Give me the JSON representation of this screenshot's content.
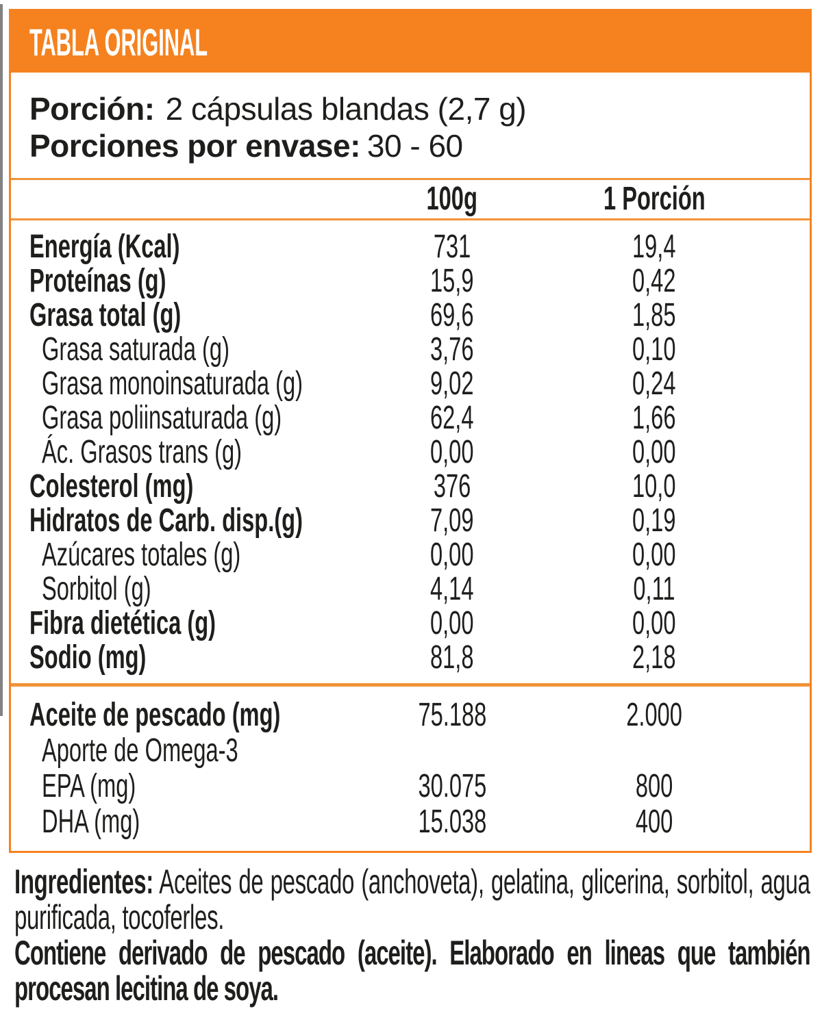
{
  "colors": {
    "accent_orange": "#F5821F",
    "rule_orange": "#F19338",
    "text_black": "#1E1E1C",
    "title_text_white": "#FFFFFF"
  },
  "header": {
    "title": "TABLA ORIGINAL"
  },
  "serving_info": {
    "portion_label": "Porción:",
    "portion_value": "2 cápsulas blandas (2,7 g)",
    "per_container_label": "Porciones por envase:",
    "per_container_value": "30 - 60"
  },
  "columns": {
    "per_100g": "100g",
    "per_portion": "1 Porción"
  },
  "nutrients": [
    {
      "label": "Energía (Kcal)",
      "per_100g": "731",
      "per_portion": "19,4",
      "bold": true,
      "indent": false
    },
    {
      "label": "Proteínas (g)",
      "per_100g": "15,9",
      "per_portion": "0,42",
      "bold": true,
      "indent": false
    },
    {
      "label": "Grasa total (g)",
      "per_100g": "69,6",
      "per_portion": "1,85",
      "bold": true,
      "indent": false
    },
    {
      "label": "Grasa saturada (g)",
      "per_100g": "3,76",
      "per_portion": "0,10",
      "bold": false,
      "indent": true
    },
    {
      "label": "Grasa monoinsaturada (g)",
      "per_100g": "9,02",
      "per_portion": "0,24",
      "bold": false,
      "indent": true
    },
    {
      "label": "Grasa poliinsaturada (g)",
      "per_100g": "62,4",
      "per_portion": "1,66",
      "bold": false,
      "indent": true
    },
    {
      "label": "Ác. Grasos trans (g)",
      "per_100g": "0,00",
      "per_portion": "0,00",
      "bold": false,
      "indent": true
    },
    {
      "label": "Colesterol (mg)",
      "per_100g": "376",
      "per_portion": "10,0",
      "bold": true,
      "indent": false
    },
    {
      "label": "Hidratos de Carb. disp.(g)",
      "per_100g": "7,09",
      "per_portion": "0,19",
      "bold": true,
      "indent": false
    },
    {
      "label": "Azúcares totales (g)",
      "per_100g": "0,00",
      "per_portion": "0,00",
      "bold": false,
      "indent": true
    },
    {
      "label": "Sorbitol (g)",
      "per_100g": "4,14",
      "per_portion": "0,11",
      "bold": false,
      "indent": true
    },
    {
      "label": "Fibra dietética (g)",
      "per_100g": "0,00",
      "per_portion": "0,00",
      "bold": true,
      "indent": false
    },
    {
      "label": "Sodio (mg)",
      "per_100g": "81,8",
      "per_portion": "2,18",
      "bold": true,
      "indent": false
    }
  ],
  "omega_section": [
    {
      "label": "Aceite de pescado (mg)",
      "per_100g": "75.188",
      "per_portion": "2.000",
      "bold": true,
      "indent": false
    },
    {
      "label": "Aporte de Omega-3",
      "per_100g": "",
      "per_portion": "",
      "bold": false,
      "indent": true
    },
    {
      "label": "EPA (mg)",
      "per_100g": "30.075",
      "per_portion": "800",
      "bold": false,
      "indent": true
    },
    {
      "label": "DHA (mg)",
      "per_100g": "15.038",
      "per_portion": "400",
      "bold": false,
      "indent": true
    }
  ],
  "footnotes": {
    "ingredients_label": "Ingredientes:",
    "ingredients_value": "Aceites de pescado (anchoveta), gelatina, glicerina, sorbitol, agua purificada, tocoferles.",
    "allergen": "Contiene derivado de pescado (aceite). Elaborado en lineas que también procesan lecitina de soya."
  }
}
